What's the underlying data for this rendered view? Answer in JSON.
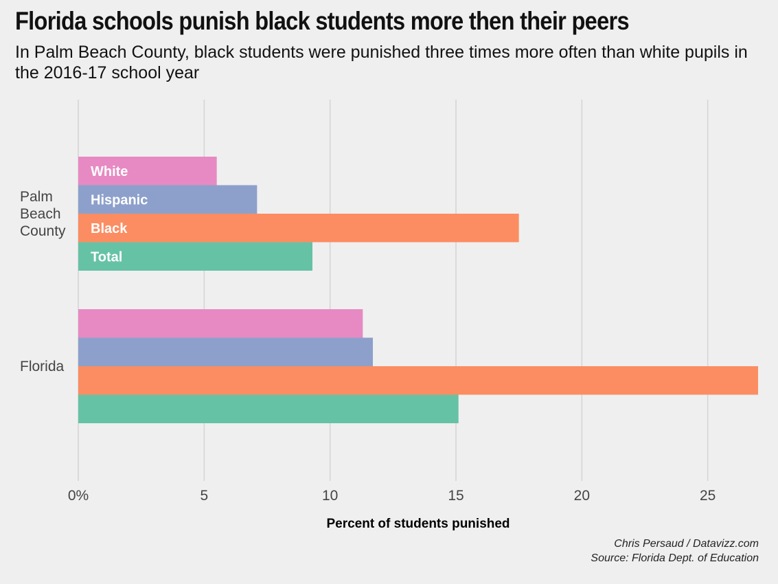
{
  "title": "Florida schools punish black students more then their peers",
  "subtitle": "In Palm Beach County, black students were punished three times more often than white pupils in the 2016-17 school year",
  "caption": {
    "line1": "Chris Persaud / Datavizz.com",
    "line2": "Source: Florida Dept. of Education"
  },
  "chart_data": {
    "type": "bar",
    "orientation": "horizontal",
    "categories": [
      [
        "Palm",
        "Beach",
        "County"
      ],
      [
        "Florida"
      ]
    ],
    "series": [
      {
        "name": "White",
        "color": "#e78ac3",
        "values": [
          5.5,
          11.3
        ]
      },
      {
        "name": "Hispanic",
        "color": "#8da0cb",
        "values": [
          7.1,
          11.7
        ]
      },
      {
        "name": "Black",
        "color": "#fc8d62",
        "values": [
          17.5,
          27.0
        ]
      },
      {
        "name": "Total",
        "color": "#66c2a5",
        "values": [
          9.3,
          15.1
        ]
      }
    ],
    "xlabel": "Percent of students punished",
    "xticks": [
      "0%",
      "5",
      "10",
      "15",
      "20",
      "25"
    ],
    "xlim": [
      0,
      27
    ],
    "grid": true,
    "legend": "inside bars, first group"
  }
}
